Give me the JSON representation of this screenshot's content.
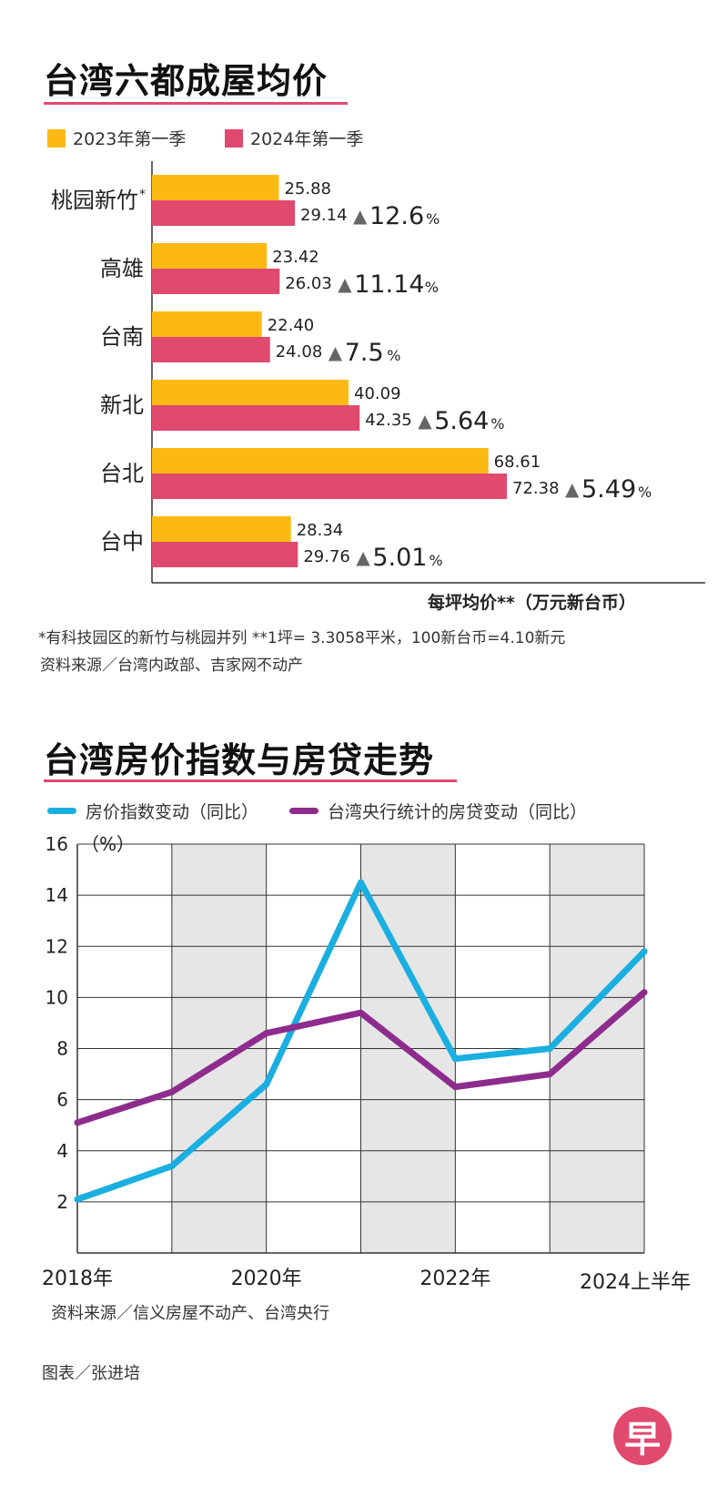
{
  "chart1": {
    "title": "台湾六都成屋均价",
    "legend": [
      {
        "name": "2023年第一季",
        "color": "#fdb913"
      },
      {
        "name": "2024年第一季",
        "color": "#e04a6f"
      }
    ],
    "unit_label": "每坪均价**（万元新台币）",
    "footnote": "*有科技园区的新竹与桃园并列  **1坪= 3.3058平米，100新台币=4.10新元",
    "source": "资料来源／台湾内政部、吉家网不动产"
  },
  "chart2": {
    "title": "台湾房价指数与房贷走势",
    "legend": [
      {
        "name": "房价指数变动（同比）",
        "color": "#1aafe0"
      },
      {
        "name": "台湾央行统计的房贷变动（同比）",
        "color": "#8e2c8e"
      }
    ],
    "source": "资料来源／信义房屋不动产、台湾央行"
  },
  "credit": "图表／张进培",
  "logo_text": "早",
  "chart_data": [
    {
      "type": "bar",
      "orientation": "horizontal",
      "title": "台湾六都成屋均价",
      "categories": [
        "桃园新竹*",
        "高雄",
        "台南",
        "新北",
        "台北",
        "台中"
      ],
      "series": [
        {
          "name": "2023年第一季",
          "values": [
            25.88,
            23.42,
            22.4,
            40.09,
            68.61,
            28.34
          ]
        },
        {
          "name": "2024年第一季",
          "values": [
            29.14,
            26.03,
            24.08,
            42.35,
            72.38,
            29.76
          ]
        }
      ],
      "value_labels_2023": [
        "25.88",
        "23.42",
        "22.40",
        "40.09",
        "68.61",
        "28.34"
      ],
      "value_labels_2024": [
        "29.14",
        "26.03",
        "24.08",
        "42.35",
        "72.38",
        "29.76"
      ],
      "change_labels": [
        "12.6",
        "11.14",
        "7.5",
        "5.64",
        "5.49",
        "5.01"
      ],
      "change_symbol": "▲",
      "change_unit": "%",
      "xlabel": "每坪均价**（万元新台币）",
      "xlim": [
        0,
        72.38
      ],
      "legend_position": "top-left"
    },
    {
      "type": "line",
      "title": "台湾房价指数与房贷走势",
      "x": [
        2018,
        2019,
        2020,
        2021,
        2022,
        2023,
        2024
      ],
      "x_tick_labels": [
        {
          "x": 2018,
          "label": "2018年"
        },
        {
          "x": 2020,
          "label": "2020年"
        },
        {
          "x": 2022,
          "label": "2022年"
        },
        {
          "x": 2024,
          "label": "2024上半年"
        }
      ],
      "series": [
        {
          "name": "房价指数变动（同比）",
          "values": [
            2.1,
            3.4,
            6.6,
            14.5,
            7.6,
            8.0,
            11.8
          ]
        },
        {
          "name": "台湾央行统计的房贷变动（同比）",
          "values": [
            5.1,
            6.3,
            8.6,
            9.4,
            6.5,
            7.0,
            10.2
          ]
        }
      ],
      "ylabel": "（%）",
      "ylim": [
        0,
        16
      ],
      "y_ticks": [
        2,
        4,
        6,
        8,
        10,
        12,
        14,
        16
      ],
      "grid": true,
      "legend_position": "top"
    }
  ]
}
